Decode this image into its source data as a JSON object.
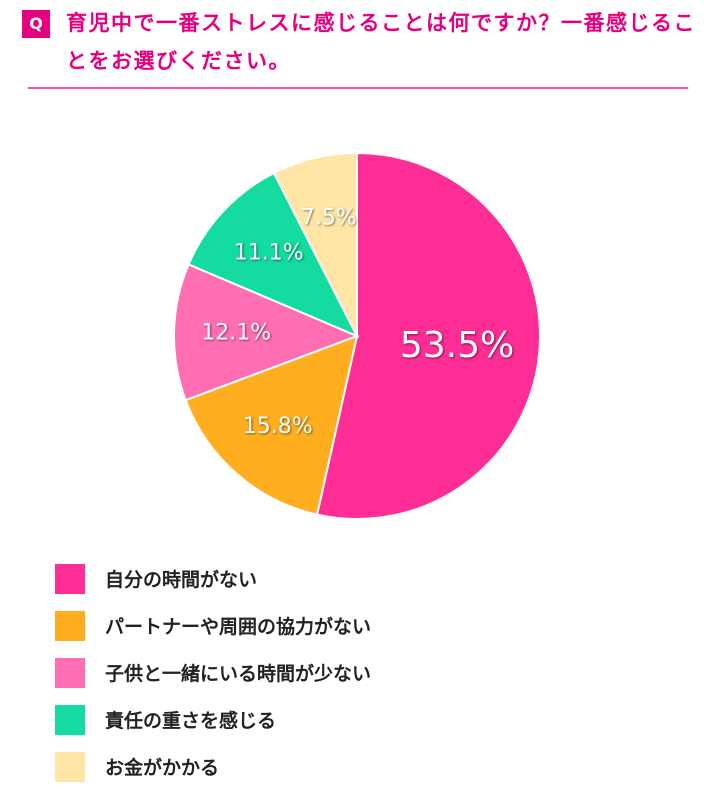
{
  "chart_data": {
    "type": "pie",
    "question_label": "Q",
    "title": "育児中で一番ストレスに感じることは何ですか？一番感じることをお選びください。",
    "categories": [
      "自分の時間がない",
      "パートナーや周囲の協力がない",
      "子供と一緒にいる時間が少ない",
      "責任の重さを感じる",
      "お金がかかる"
    ],
    "values": [
      53.5,
      15.8,
      12.1,
      11.1,
      7.5
    ],
    "value_labels": [
      "53.5%",
      "15.8%",
      "12.1%",
      "11.1%",
      "7.5%"
    ],
    "colors": [
      "#ff2d96",
      "#ffae1f",
      "#ff6eb3",
      "#14dca0",
      "#ffe6a6"
    ]
  }
}
